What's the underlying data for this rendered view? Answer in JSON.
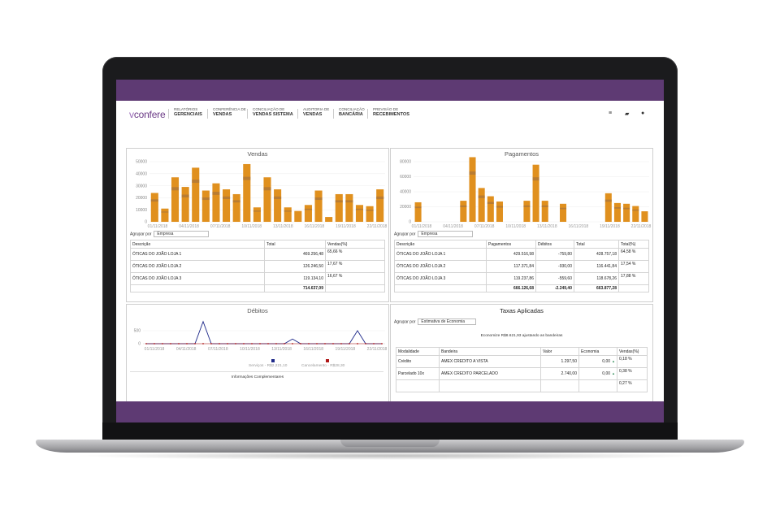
{
  "nav": {
    "logo_prefix": "v",
    "logo_text": "confere",
    "items": [
      {
        "top": "RELATÓRIOS",
        "bottom": "GERENCIAIS"
      },
      {
        "top": "CONFERÊNCIA DE",
        "bottom": "VENDAS"
      },
      {
        "top": "CONCILIAÇÃO DE",
        "bottom": "VENDAS SISTEMA"
      },
      {
        "top": "AUDITORIA DE",
        "bottom": "VENDAS"
      },
      {
        "top": "CONCILIAÇÃO",
        "bottom": "BANCÁRIA"
      },
      {
        "top": "PREVISÃO DE",
        "bottom": "RECEBIMENTOS"
      }
    ],
    "icons": [
      "menu-icon",
      "chat-icon",
      "user-icon"
    ]
  },
  "colors": {
    "band": "#5e3a73",
    "bar": "#e0901e",
    "bar_dark": "#a8733a",
    "line_blue": "#1f2a8a",
    "line_red": "#b01818"
  },
  "vendas": {
    "title": "Vendas",
    "chart_data": {
      "type": "bar",
      "yticks": [
        "50000",
        "40000",
        "30000",
        "20000",
        "10000",
        "0"
      ],
      "ylim": [
        0,
        50000
      ],
      "xticks": [
        "01/11/2018",
        "04/11/2018",
        "07/11/2018",
        "10/11/2018",
        "13/11/2018",
        "16/11/2018",
        "19/11/2018",
        "22/11/2018"
      ],
      "values": [
        24000,
        11000,
        37000,
        29000,
        45000,
        26000,
        32000,
        27000,
        23000,
        48000,
        12000,
        37000,
        27000,
        12000,
        9000,
        14000,
        26000,
        4000,
        23000,
        23000,
        14000,
        13000,
        27000
      ]
    },
    "group_label": "Agrupar por",
    "group_value": "Empresa",
    "headers": [
      "Descrição",
      "Total",
      "Vendas(%)"
    ],
    "rows": [
      {
        "desc": "ÓTICAS DO JOÃO LOJA 1",
        "total": "469.256,48",
        "pct": "65,66 %"
      },
      {
        "desc": "ÓTICAS DO JOÃO LOJA 2",
        "total": "126.246,50",
        "pct": "17,67 %"
      },
      {
        "desc": "ÓTICAS DO JOÃO LOJA 3",
        "total": "119.134,10",
        "pct": "16,67 %"
      }
    ],
    "total": "714.637,09"
  },
  "pagamentos": {
    "title": "Pagamentos",
    "chart_data": {
      "type": "bar",
      "yticks": [
        "80000",
        "60000",
        "40000",
        "20000",
        "0"
      ],
      "ylim": [
        0,
        80000
      ],
      "xticks": [
        "01/11/2018",
        "04/11/2018",
        "07/11/2018",
        "10/11/2018",
        "13/11/2018",
        "16/11/2018",
        "19/11/2018",
        "22/11/2018"
      ],
      "values": [
        26000,
        0,
        0,
        0,
        0,
        28000,
        86000,
        45000,
        34000,
        27000,
        0,
        0,
        28000,
        76000,
        28000,
        0,
        24000,
        0,
        0,
        0,
        0,
        38000,
        25000,
        24000,
        21000,
        14000
      ]
    },
    "group_label": "Agrupar por",
    "group_value": "Empresa",
    "headers": [
      "Descrição",
      "Pagamentos",
      "Débitos",
      "Total",
      "Total(%)"
    ],
    "rows": [
      {
        "desc": "ÓTICAS DO JOÃO LOJA 1",
        "pag": "429.516,98",
        "deb": "-759,80",
        "total": "428.757,18",
        "pct": "64,58 %"
      },
      {
        "desc": "ÓTICAS DO JOÃO LOJA 2",
        "pag": "117.371,84",
        "deb": "-930,00",
        "total": "116.441,84",
        "pct": "17,54 %"
      },
      {
        "desc": "ÓTICAS DO JOÃO LOJA 3",
        "pag": "119.237,86",
        "deb": "-559,60",
        "total": "118.678,26",
        "pct": "17,88 %"
      }
    ],
    "totals": {
      "pag": "666.126,68",
      "deb": "-2.249,40",
      "total": "663.877,28"
    }
  },
  "debitos": {
    "title": "Débitos",
    "chart_data": {
      "type": "line",
      "yticks": [
        "500",
        "0"
      ],
      "ylim": [
        0,
        1000
      ],
      "xticks": [
        "01/11/2018",
        "04/11/2018",
        "07/11/2018",
        "10/11/2018",
        "13/11/2018",
        "16/11/2018",
        "19/11/2018",
        "22/11/2018"
      ],
      "series": [
        {
          "name": "Serviços - R$2.221,10",
          "values": [
            0,
            0,
            0,
            0,
            0,
            0,
            0,
            0,
            0,
            0,
            0,
            0,
            0,
            0,
            0,
            0,
            0,
            0,
            0,
            0,
            0,
            0,
            0,
            0,
            0,
            0,
            0,
            0,
            0,
            0
          ]
        },
        {
          "name": "Cancelamento - R$28,30",
          "values": [
            0,
            0,
            0,
            0,
            0,
            0,
            0,
            0,
            0,
            0,
            0,
            0,
            0,
            0,
            0,
            0,
            0,
            0,
            0,
            0,
            0,
            0,
            0,
            0,
            0,
            0,
            0,
            0,
            0,
            0
          ]
        }
      ],
      "blue_values": [
        0,
        0,
        0,
        0,
        0,
        0,
        0,
        850,
        0,
        0,
        0,
        0,
        0,
        0,
        0,
        0,
        0,
        0,
        180,
        0,
        0,
        0,
        0,
        0,
        0,
        0,
        500,
        0,
        0,
        0
      ]
    },
    "legend_services": "Serviços - R$2.221,10",
    "legend_cancel": "Cancelamento - R$28,30",
    "more": "Informações Complementares"
  },
  "taxas": {
    "title": "Taxas Aplicadas",
    "group_label": "Agrupar por",
    "group_value": "Estimativa de Economia",
    "economize": "Economize R$8.621,93 ajustando as bandeiras",
    "headers": [
      "Modalidade",
      "Bandeira",
      "Valor",
      "Economia",
      "Vendas(%)"
    ],
    "rows": [
      {
        "mod": "Crédito",
        "band": "AMEX CREDITO A VISTA",
        "valor": "1.297,50",
        "eco": "0,00",
        "pct": "0,18 %"
      },
      {
        "mod": "Parcelado 10x",
        "band": "AMEX CREDITO PARCELADO",
        "valor": "2.740,00",
        "eco": "0,00",
        "pct": "0,38 %"
      }
    ],
    "partial": "0,27 %"
  }
}
